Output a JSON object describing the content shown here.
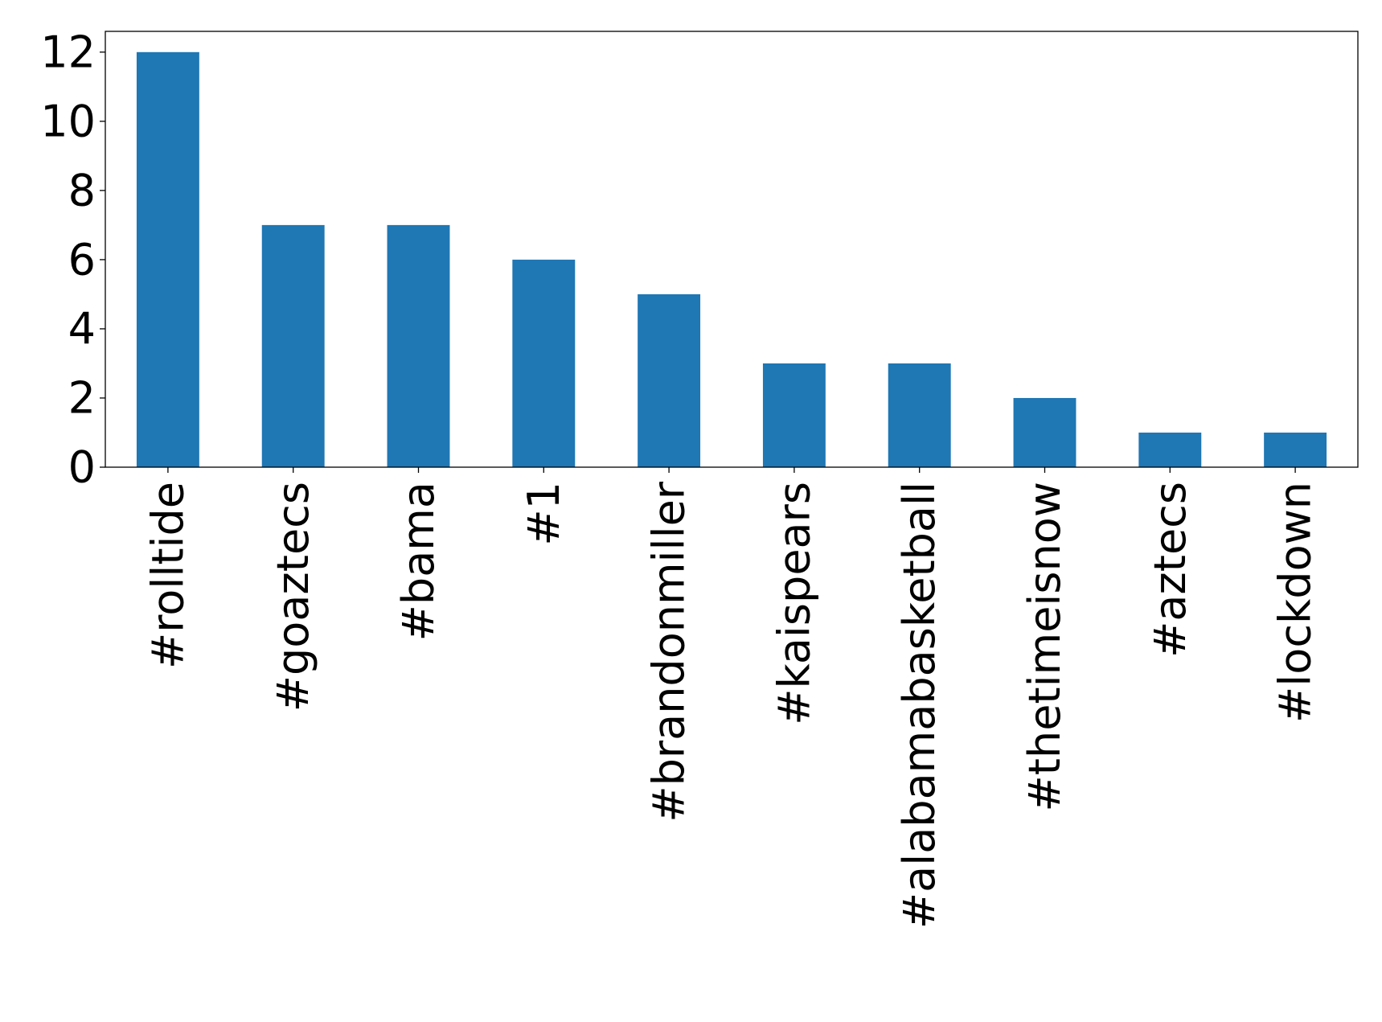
{
  "chart_data": {
    "type": "bar",
    "title": "",
    "xlabel": "",
    "ylabel": "",
    "categories": [
      "#rolltide",
      "#goaztecs",
      "#bama",
      "#1",
      "#brandonmiller",
      "#kaispears",
      "#alabamabasketball",
      "#thetimeisnow",
      "#aztecs",
      "#lockdown"
    ],
    "values": [
      12,
      7,
      7,
      6,
      5,
      3,
      3,
      2,
      1,
      1
    ],
    "yticks": [
      0,
      2,
      4,
      6,
      8,
      10,
      12
    ],
    "ylim": [
      0,
      12.6
    ],
    "grid": false,
    "legend": "none",
    "bar_color": "#1f77b4"
  }
}
